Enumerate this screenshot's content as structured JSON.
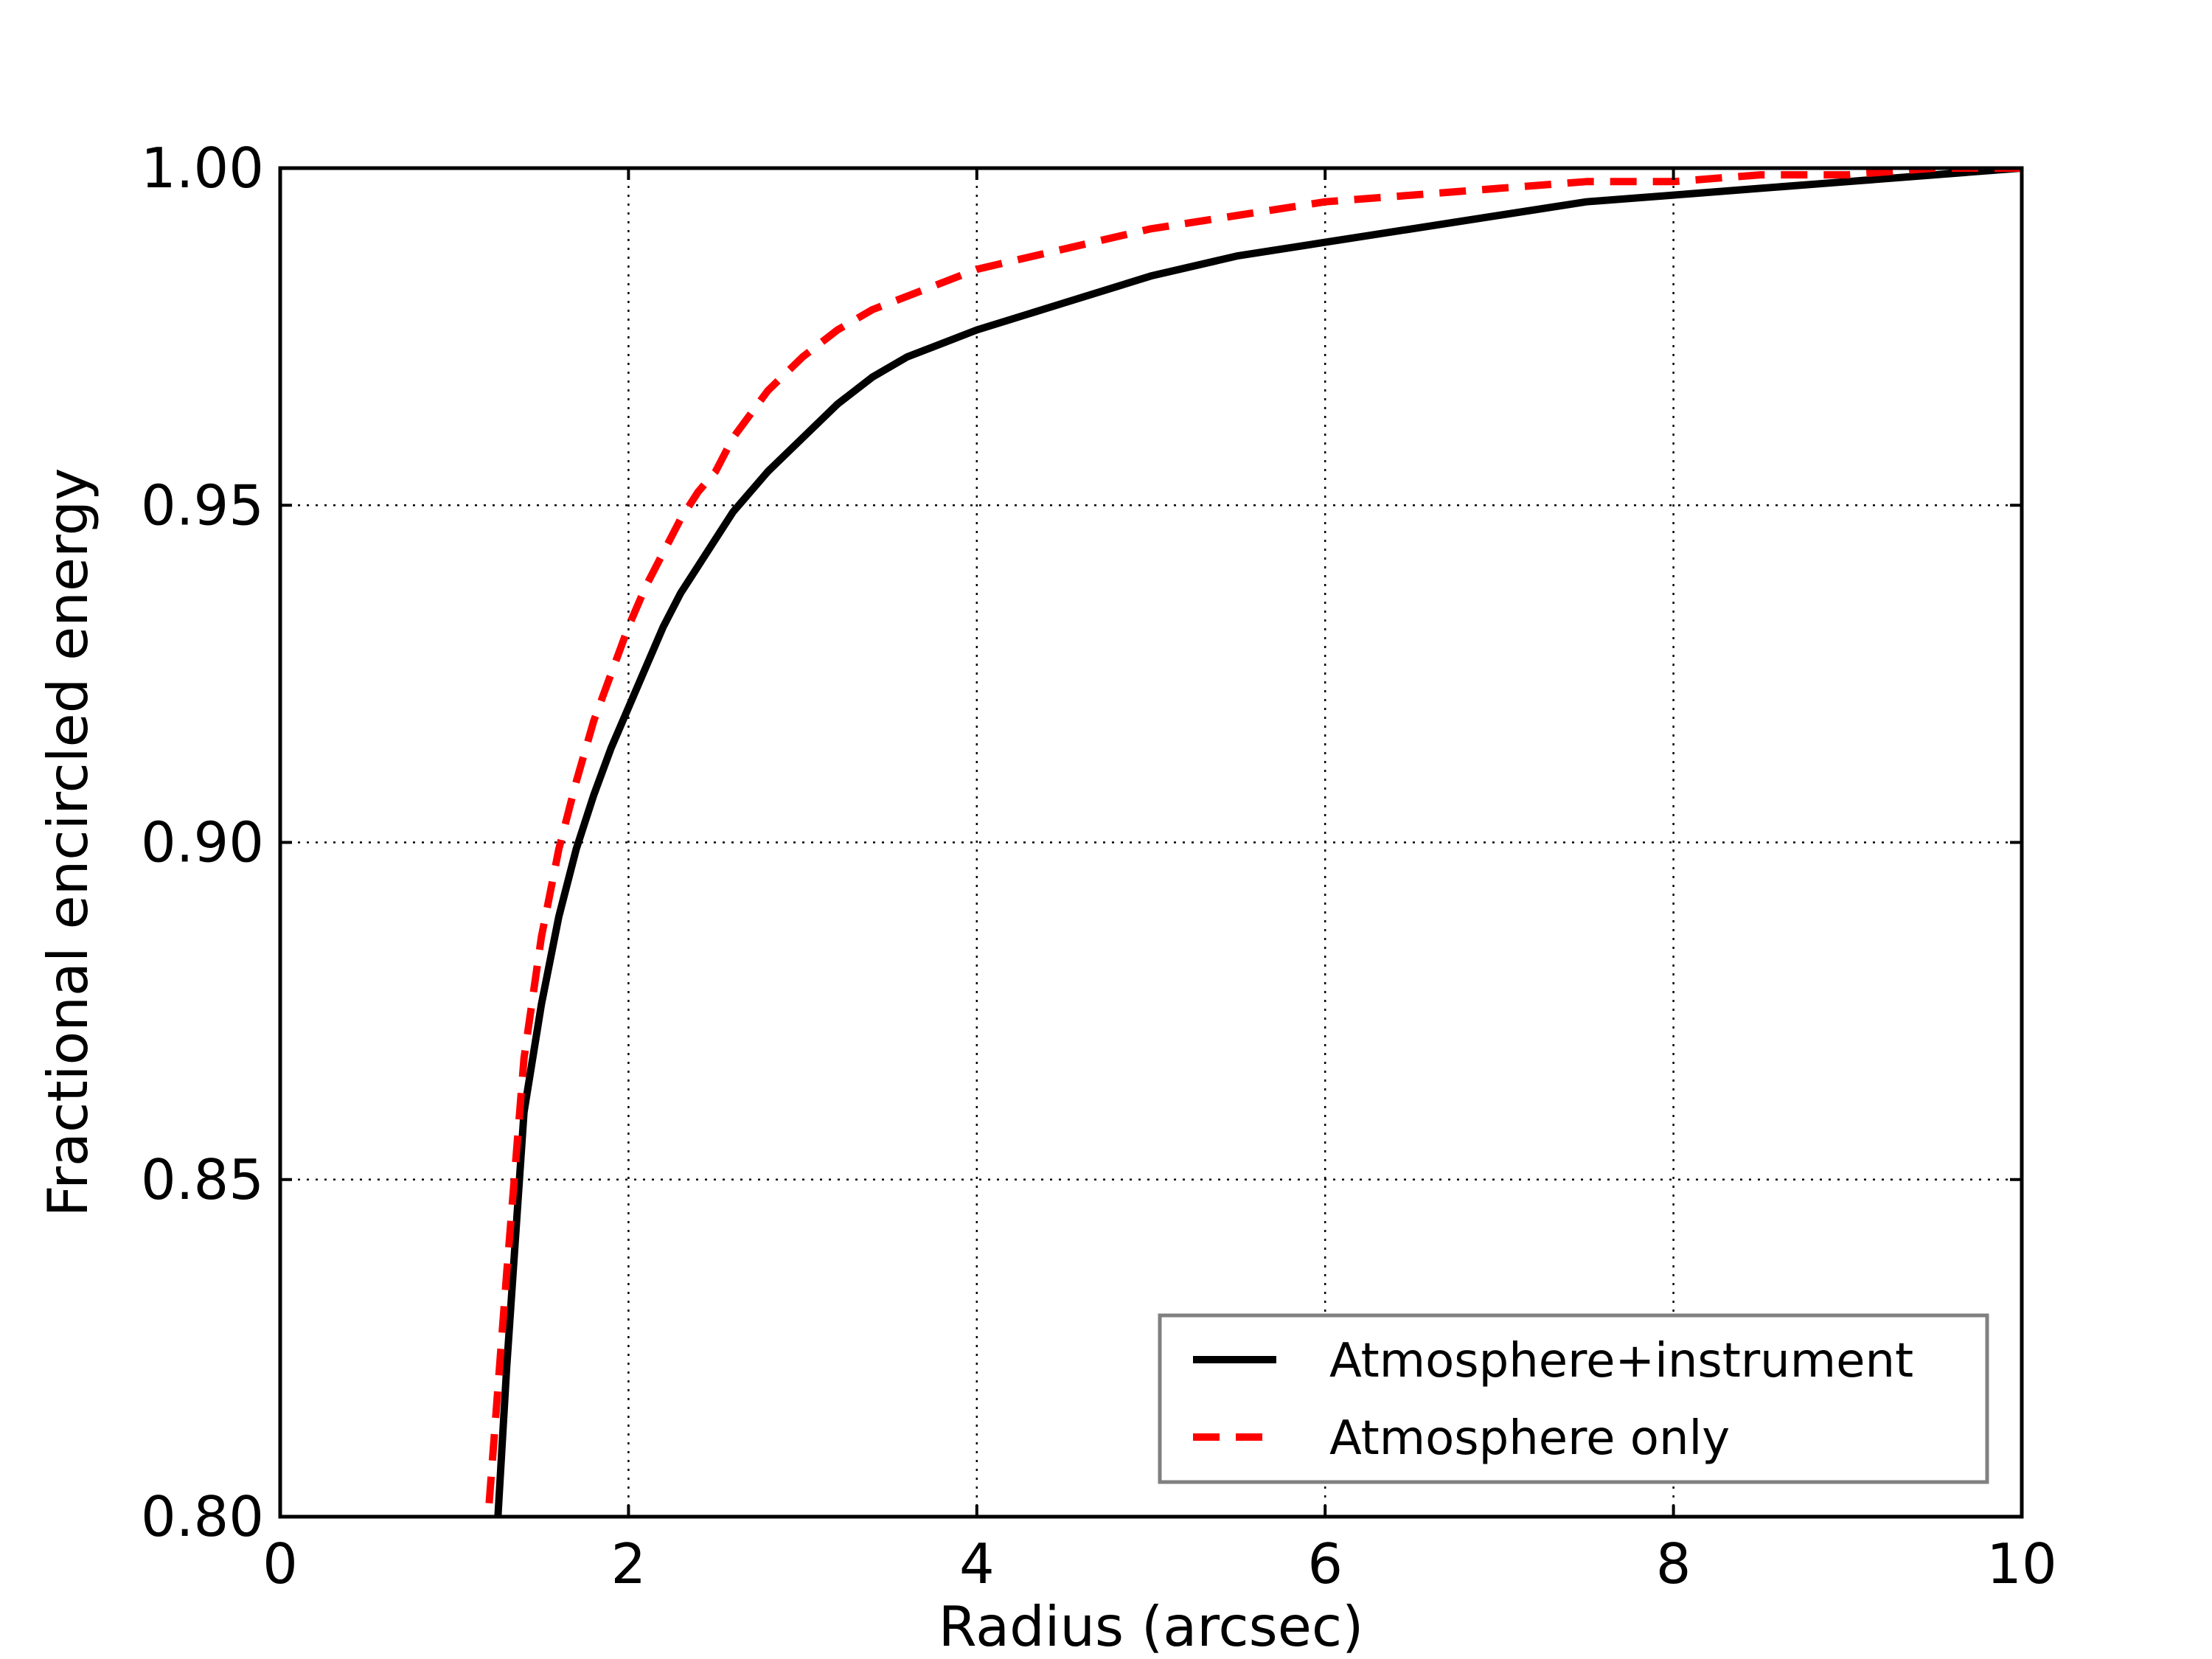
{
  "chart_data": {
    "type": "line",
    "title": "",
    "xlabel": "Radius (arcsec)",
    "ylabel": "Fractional encircled energy",
    "xlim": [
      0,
      10
    ],
    "ylim": [
      0.8,
      1.0
    ],
    "x_ticks": [
      "0",
      "2",
      "4",
      "6",
      "8",
      "10"
    ],
    "y_ticks": [
      "0.80",
      "0.85",
      "0.90",
      "0.95",
      "1.00"
    ],
    "grid": true,
    "legend_position": "lower-right",
    "series": [
      {
        "name": "Atmosphere+instrument",
        "color": "#000000",
        "style": "solid",
        "x": [
          1.25,
          1.3,
          1.4,
          1.5,
          1.6,
          1.7,
          1.8,
          1.9,
          2.0,
          2.1,
          2.2,
          2.3,
          2.4,
          2.5,
          2.6,
          2.8,
          3.0,
          3.2,
          3.4,
          3.6,
          3.8,
          4.0,
          4.5,
          5.0,
          5.5,
          6.0,
          6.5,
          7.0,
          7.5,
          8.0,
          8.5,
          9.0,
          9.5,
          10.0
        ],
        "y": [
          0.8,
          0.822,
          0.86,
          0.876,
          0.889,
          0.899,
          0.907,
          0.914,
          0.92,
          0.926,
          0.932,
          0.937,
          0.941,
          0.945,
          0.949,
          0.955,
          0.96,
          0.965,
          0.969,
          0.972,
          0.974,
          0.976,
          0.98,
          0.984,
          0.987,
          0.989,
          0.991,
          0.993,
          0.995,
          0.996,
          0.997,
          0.998,
          0.999,
          1.0
        ]
      },
      {
        "name": "Atmosphere only",
        "color": "#ff0000",
        "style": "dashed",
        "x": [
          1.2,
          1.3,
          1.4,
          1.5,
          1.6,
          1.7,
          1.8,
          1.9,
          2.0,
          2.1,
          2.2,
          2.3,
          2.4,
          2.5,
          2.6,
          2.8,
          3.0,
          3.2,
          3.4,
          3.6,
          3.8,
          4.0,
          4.5,
          5.0,
          5.5,
          6.0,
          6.5,
          7.0,
          7.5,
          8.0,
          8.5,
          9.0,
          9.5,
          10.0
        ],
        "y": [
          0.802,
          0.836,
          0.868,
          0.886,
          0.899,
          0.909,
          0.918,
          0.925,
          0.932,
          0.938,
          0.943,
          0.948,
          0.952,
          0.955,
          0.96,
          0.967,
          0.972,
          0.976,
          0.979,
          0.981,
          0.983,
          0.985,
          0.988,
          0.991,
          0.993,
          0.995,
          0.996,
          0.997,
          0.998,
          0.998,
          0.999,
          0.999,
          1.0,
          1.0
        ]
      }
    ]
  }
}
